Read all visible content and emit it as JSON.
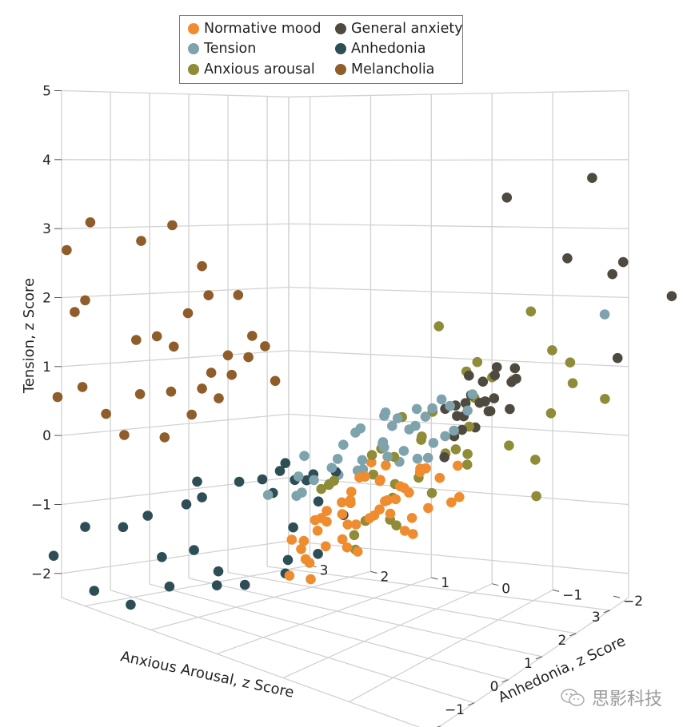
{
  "chart_data": {
    "type": "scatter3d",
    "title": "",
    "xlabel": "Anxious Arousal, z Score",
    "ylabel": "Anhedonia, z Score",
    "zlabel": "Tension, z Score",
    "xlim": [
      -2,
      3
    ],
    "ylim": [
      -2,
      3
    ],
    "zlim": [
      -2,
      5
    ],
    "x_ticks": [
      "−2",
      "−1",
      "0",
      "1",
      "2",
      "3"
    ],
    "y_ticks": [
      "−2",
      "−1",
      "0",
      "1",
      "2",
      "3"
    ],
    "z_ticks": [
      "−2",
      "−1",
      "0",
      "1",
      "2",
      "3",
      "4",
      "5"
    ],
    "grid": true,
    "legend_position": "top-center",
    "series": [
      {
        "name": "Normative mood",
        "color": "#ef8c2f",
        "points": [
          [
            0.2,
            0.1,
            0.0
          ],
          [
            0.4,
            0.3,
            -0.1
          ],
          [
            0.6,
            0.0,
            0.1
          ],
          [
            0.3,
            -0.2,
            -0.3
          ],
          [
            0.8,
            0.2,
            -0.2
          ],
          [
            0.5,
            0.5,
            -0.5
          ],
          [
            0.1,
            0.4,
            -0.6
          ],
          [
            0.7,
            -0.1,
            -0.4
          ],
          [
            0.9,
            0.4,
            0.0
          ],
          [
            1.0,
            0.0,
            -0.3
          ],
          [
            0.4,
            -0.4,
            -0.1
          ],
          [
            0.2,
            0.7,
            -0.8
          ],
          [
            0.6,
            0.6,
            -0.9
          ],
          [
            0.0,
            0.2,
            -0.2
          ],
          [
            1.1,
            0.3,
            -0.6
          ],
          [
            0.3,
            0.9,
            -1.0
          ],
          [
            0.8,
            0.8,
            -1.2
          ],
          [
            0.5,
            -0.6,
            0.2
          ],
          [
            1.2,
            -0.2,
            -0.1
          ],
          [
            -0.2,
            0.1,
            -0.3
          ],
          [
            0.0,
            0.6,
            -1.1
          ],
          [
            0.7,
            0.5,
            -1.3
          ],
          [
            1.3,
            0.5,
            -0.8
          ],
          [
            -0.3,
            0.5,
            -0.6
          ],
          [
            1.4,
            -0.4,
            -0.2
          ],
          [
            0.2,
            1.1,
            -1.3
          ],
          [
            0.9,
            -0.5,
            -0.5
          ],
          [
            -0.1,
            -0.3,
            0.1
          ],
          [
            0.6,
            1.2,
            -1.6
          ],
          [
            1.5,
            0.1,
            -0.9
          ],
          [
            -0.5,
            0.3,
            -0.4
          ],
          [
            0.3,
            -0.8,
            0.3
          ],
          [
            1.1,
            0.9,
            -1.4
          ],
          [
            -0.4,
            0.9,
            -1.0
          ],
          [
            0.4,
            1.4,
            -1.8
          ],
          [
            1.6,
            -0.6,
            -0.5
          ],
          [
            -0.8,
            -0.1,
            -0.1
          ],
          [
            0.8,
            1.3,
            -1.9
          ],
          [
            1.7,
            0.2,
            -1.2
          ],
          [
            0.0,
            -0.7,
            0.0
          ],
          [
            -0.6,
            0.6,
            -0.9
          ],
          [
            1.2,
            -0.8,
            0.1
          ],
          [
            0.9,
            0.1,
            -0.7
          ],
          [
            0.1,
            -0.1,
            -0.5
          ],
          [
            0.5,
            0.2,
            -0.7
          ],
          [
            1.0,
            0.7,
            -1.0
          ],
          [
            -0.2,
            0.8,
            -1.3
          ],
          [
            1.9,
            -0.3,
            -0.7
          ],
          [
            -1.0,
            0.2,
            -0.4
          ],
          [
            0.6,
            -0.3,
            -0.8
          ]
        ]
      },
      {
        "name": "Tension",
        "color": "#7fa3ad",
        "points": [
          [
            -0.3,
            -0.5,
            1.2
          ],
          [
            0.0,
            -0.8,
            1.0
          ],
          [
            0.4,
            -0.6,
            1.1
          ],
          [
            0.8,
            -0.9,
            1.1
          ],
          [
            1.0,
            -0.4,
            0.8
          ],
          [
            -0.6,
            -0.2,
            0.9
          ],
          [
            -0.4,
            0.1,
            0.6
          ],
          [
            0.2,
            -0.2,
            0.5
          ],
          [
            0.6,
            -0.1,
            0.7
          ],
          [
            1.2,
            -0.6,
            0.5
          ],
          [
            -0.9,
            0.0,
            0.4
          ],
          [
            -0.2,
            0.3,
            0.3
          ],
          [
            0.3,
            0.2,
            0.2
          ],
          [
            0.7,
            0.1,
            0.4
          ],
          [
            1.4,
            -0.3,
            0.3
          ],
          [
            -1.1,
            0.4,
            0.2
          ],
          [
            -0.5,
            0.5,
            0.0
          ],
          [
            0.0,
            0.4,
            0.0
          ],
          [
            0.5,
            0.3,
            0.0
          ],
          [
            1.0,
            0.2,
            0.1
          ],
          [
            1.6,
            -0.1,
            0.0
          ],
          [
            -0.7,
            -0.7,
            1.3
          ],
          [
            0.2,
            -1.1,
            1.4
          ],
          [
            0.9,
            -1.2,
            1.3
          ],
          [
            1.3,
            -0.9,
            0.9
          ],
          [
            -1.3,
            0.2,
            0.6
          ],
          [
            -0.1,
            0.0,
            0.8
          ],
          [
            0.4,
            -0.3,
            0.9
          ],
          [
            1.1,
            0.0,
            0.2
          ],
          [
            -0.8,
            0.6,
            -0.2
          ],
          [
            0.1,
            0.6,
            -0.2
          ],
          [
            0.7,
            0.5,
            -0.1
          ],
          [
            1.5,
            0.3,
            -0.1
          ],
          [
            -1.4,
            0.7,
            -0.1
          ],
          [
            -0.3,
            0.8,
            -0.3
          ],
          [
            0.9,
            -0.2,
            0.6
          ],
          [
            0.3,
            -0.9,
            1.2
          ],
          [
            -0.2,
            -0.4,
            0.7
          ],
          [
            0.6,
            -0.5,
            0.3
          ],
          [
            1.8,
            -0.4,
            0.4
          ],
          [
            4.0,
            -1.6,
            1.6
          ]
        ]
      },
      {
        "name": "Anxious arousal",
        "color": "#8f8c39",
        "points": [
          [
            1.2,
            -0.5,
            2.1
          ],
          [
            2.4,
            -1.3,
            2.1
          ],
          [
            1.4,
            -1.0,
            1.6
          ],
          [
            2.3,
            -1.7,
            1.6
          ],
          [
            3.0,
            -1.6,
            1.2
          ],
          [
            3.3,
            -2.0,
            0.6
          ],
          [
            2.6,
            -0.9,
            1.0
          ],
          [
            1.8,
            -0.6,
            1.3
          ],
          [
            2.0,
            -0.9,
            1.2
          ],
          [
            2.2,
            -0.5,
            0.8
          ],
          [
            2.8,
            -1.4,
            0.5
          ],
          [
            1.6,
            0.0,
            0.3
          ],
          [
            2.4,
            -0.3,
            0.3
          ],
          [
            2.6,
            0.2,
            -0.2
          ],
          [
            3.0,
            -0.6,
            -0.1
          ],
          [
            3.4,
            -0.8,
            -0.4
          ],
          [
            2.2,
            0.4,
            -0.5
          ],
          [
            2.9,
            0.6,
            -0.9
          ],
          [
            3.6,
            -0.7,
            -1.0
          ],
          [
            2.0,
            0.7,
            -0.8
          ],
          [
            2.6,
            1.1,
            -1.3
          ],
          [
            3.1,
            1.3,
            -1.5
          ],
          [
            2.5,
            1.6,
            -1.8
          ],
          [
            1.7,
            0.5,
            -0.1
          ],
          [
            1.4,
            0.2,
            0.6
          ],
          [
            -0.5,
            -0.4,
            0.6
          ],
          [
            -0.8,
            0.1,
            0.1
          ],
          [
            -0.3,
            0.3,
            0.0
          ],
          [
            0.4,
            0.9,
            -0.4
          ],
          [
            1.0,
            0.3,
            0.2
          ],
          [
            1.9,
            0.0,
            0.6
          ],
          [
            2.2,
            -0.2,
            0.0
          ],
          [
            1.8,
            1.2,
            -1.4
          ],
          [
            2.4,
            0.9,
            -0.7
          ],
          [
            2.7,
            -0.1,
            -0.2
          ],
          [
            3.2,
            0.2,
            -0.5
          ],
          [
            1.6,
            0.9,
            -1.1
          ],
          [
            3.6,
            -1.3,
            0.7
          ],
          [
            2.1,
            0.3,
            0.1
          ],
          [
            1.3,
            0.6,
            -0.3
          ]
        ]
      },
      {
        "name": "General anxiety",
        "color": "#4f4a40",
        "points": [
          [
            0.8,
            -1.8,
            4.3
          ],
          [
            2.2,
            -2.4,
            4.2
          ],
          [
            2.2,
            -2.0,
            3.0
          ],
          [
            2.8,
            -2.4,
            2.6
          ],
          [
            3.3,
            -2.3,
            2.6
          ],
          [
            4.2,
            -2.6,
            1.8
          ],
          [
            4.2,
            -1.7,
            0.9
          ],
          [
            0.8,
            -1.2,
            1.6
          ],
          [
            1.0,
            -1.5,
            1.6
          ],
          [
            1.4,
            -1.6,
            1.6
          ],
          [
            1.2,
            -1.2,
            1.4
          ],
          [
            1.6,
            -1.2,
            1.5
          ],
          [
            1.8,
            -1.4,
            1.3
          ],
          [
            1.4,
            -0.9,
            1.1
          ],
          [
            1.6,
            -0.7,
            0.9
          ],
          [
            1.8,
            -0.9,
            0.9
          ],
          [
            2.0,
            -0.7,
            0.8
          ],
          [
            1.9,
            -0.5,
            0.6
          ],
          [
            2.3,
            -0.7,
            0.6
          ],
          [
            2.5,
            -0.9,
            0.6
          ],
          [
            1.0,
            -0.9,
            0.9
          ],
          [
            1.2,
            -0.6,
            0.9
          ],
          [
            2.6,
            -0.5,
            0.5
          ],
          [
            2.2,
            -0.3,
            0.3
          ],
          [
            2.5,
            0.0,
            0.1
          ],
          [
            2.4,
            0.1,
            -0.2
          ],
          [
            0.6,
            -1.1,
            1.2
          ],
          [
            2.2,
            -1.1,
            1.1
          ],
          [
            2.4,
            -0.4,
            0.3
          ],
          [
            1.7,
            -1.1,
            1.0
          ]
        ]
      },
      {
        "name": "Anhedonia",
        "color": "#2e4e56",
        "points": [
          [
            -1.3,
            2.6,
            -1.0
          ],
          [
            -0.9,
            2.0,
            -0.6
          ],
          [
            -0.6,
            1.6,
            -0.3
          ],
          [
            -0.5,
            1.3,
            -0.2
          ],
          [
            -0.2,
            1.2,
            -0.1
          ],
          [
            -0.8,
            2.3,
            -0.8
          ],
          [
            -1.6,
            2.8,
            -1.2
          ],
          [
            -1.9,
            3.2,
            -1.3
          ],
          [
            -2.2,
            3.5,
            -1.8
          ],
          [
            -1.1,
            2.5,
            -1.6
          ],
          [
            -0.6,
            2.3,
            -1.5
          ],
          [
            -0.3,
            2.1,
            -1.8
          ],
          [
            0.0,
            2.3,
            -2.1
          ],
          [
            -1.5,
            3.3,
            -2.3
          ],
          [
            0.3,
            1.6,
            -0.6
          ],
          [
            0.2,
            1.2,
            -0.3
          ],
          [
            0.5,
            1.4,
            -1.1
          ],
          [
            0.8,
            1.7,
            -1.9
          ],
          [
            1.2,
            1.9,
            -1.8
          ],
          [
            0.4,
            2.1,
            -2.1
          ],
          [
            -0.4,
            1.0,
            0.1
          ],
          [
            0.0,
            0.9,
            -0.2
          ],
          [
            1.0,
            0.9,
            -0.9
          ],
          [
            -1.2,
            1.9,
            -0.3
          ],
          [
            0.7,
            1.2,
            -0.3
          ],
          [
            -0.4,
            2.8,
            -2.2
          ],
          [
            -0.9,
            3.1,
            -2.5
          ],
          [
            1.5,
            1.6,
            -1.7
          ],
          [
            0.1,
            0.5,
            0.0
          ],
          [
            -0.2,
            0.6,
            -0.4
          ]
        ]
      },
      {
        "name": "Melancholia",
        "color": "#8e5d2a",
        "points": [
          [
            -1.6,
            3.3,
            3.1
          ],
          [
            -1.0,
            2.4,
            3.3
          ],
          [
            -1.3,
            2.7,
            3.0
          ],
          [
            -0.9,
            2.0,
            2.8
          ],
          [
            -1.7,
            3.6,
            2.6
          ],
          [
            -0.9,
            1.9,
            2.4
          ],
          [
            -0.8,
            1.5,
            2.5
          ],
          [
            -1.1,
            2.1,
            2.1
          ],
          [
            -0.6,
            1.4,
            1.9
          ],
          [
            -0.9,
            1.6,
            1.6
          ],
          [
            -1.9,
            3.2,
            2.0
          ],
          [
            -2.0,
            3.3,
            1.8
          ],
          [
            -1.6,
            2.6,
            1.6
          ],
          [
            -1.4,
            2.4,
            1.7
          ],
          [
            -1.3,
            2.2,
            1.6
          ],
          [
            -1.0,
            1.8,
            1.3
          ],
          [
            -0.8,
            1.6,
            1.3
          ],
          [
            -0.7,
            1.4,
            1.6
          ],
          [
            -0.5,
            1.1,
            1.3
          ],
          [
            -0.6,
            1.2,
            1.8
          ],
          [
            -0.8,
            1.8,
            0.9
          ],
          [
            -0.9,
            2.0,
            1.0
          ],
          [
            -1.2,
            2.3,
            0.9
          ],
          [
            -1.0,
            2.1,
            0.6
          ],
          [
            -1.5,
            2.6,
            0.8
          ],
          [
            -1.8,
            3.3,
            0.7
          ],
          [
            -1.7,
            3.0,
            0.4
          ],
          [
            -2.1,
            3.5,
            0.5
          ],
          [
            -1.4,
            2.9,
            0.1
          ],
          [
            -1.2,
            2.4,
            0.2
          ]
        ]
      }
    ]
  },
  "legend": {
    "items": [
      {
        "label": "Normative mood",
        "color": "#ef8c2f"
      },
      {
        "label": "General anxiety",
        "color": "#4f4a40"
      },
      {
        "label": "Tension",
        "color": "#7fa3ad"
      },
      {
        "label": "Anhedonia",
        "color": "#2e4e56"
      },
      {
        "label": "Anxious arousal",
        "color": "#8f8c39"
      },
      {
        "label": "Melancholia",
        "color": "#8e5d2a"
      }
    ]
  },
  "watermark": {
    "text": "思影科技"
  }
}
